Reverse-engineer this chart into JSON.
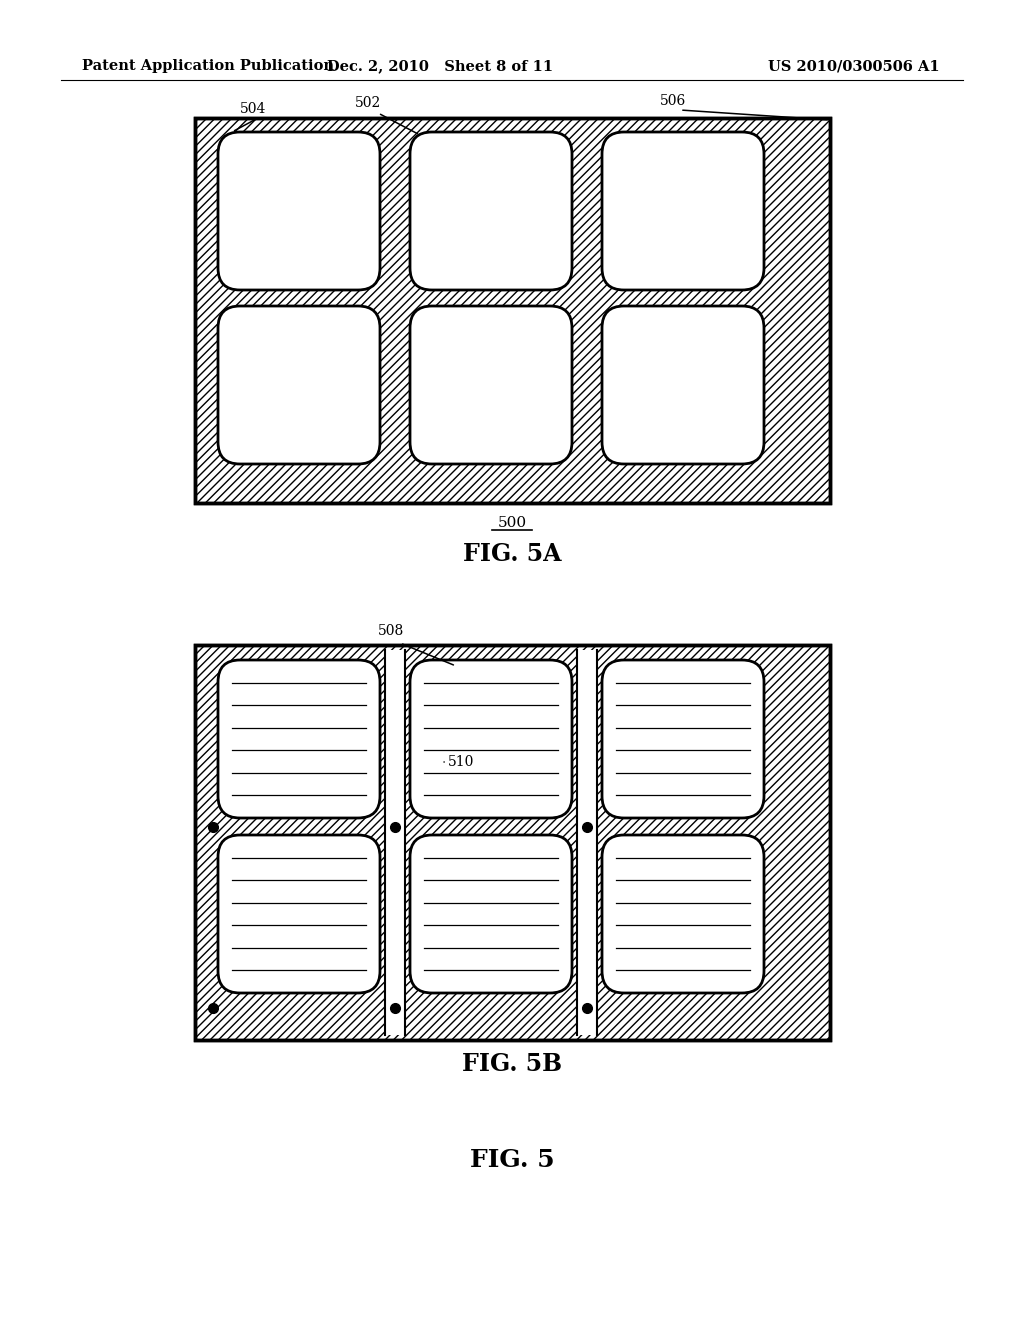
{
  "bg_color": "#ffffff",
  "header_left": "Patent Application Publication",
  "header_mid": "Dec. 2, 2010   Sheet 8 of 11",
  "header_right": "US 2010/0300506 A1",
  "fig5a_label": "FIG. 5A",
  "fig5b_label": "FIG. 5B",
  "fig5_label": "FIG. 5",
  "label_500": "500",
  "label_502": "502",
  "label_504": "504",
  "label_506": "506",
  "label_508": "508",
  "label_510": "510",
  "border_color": "#000000"
}
